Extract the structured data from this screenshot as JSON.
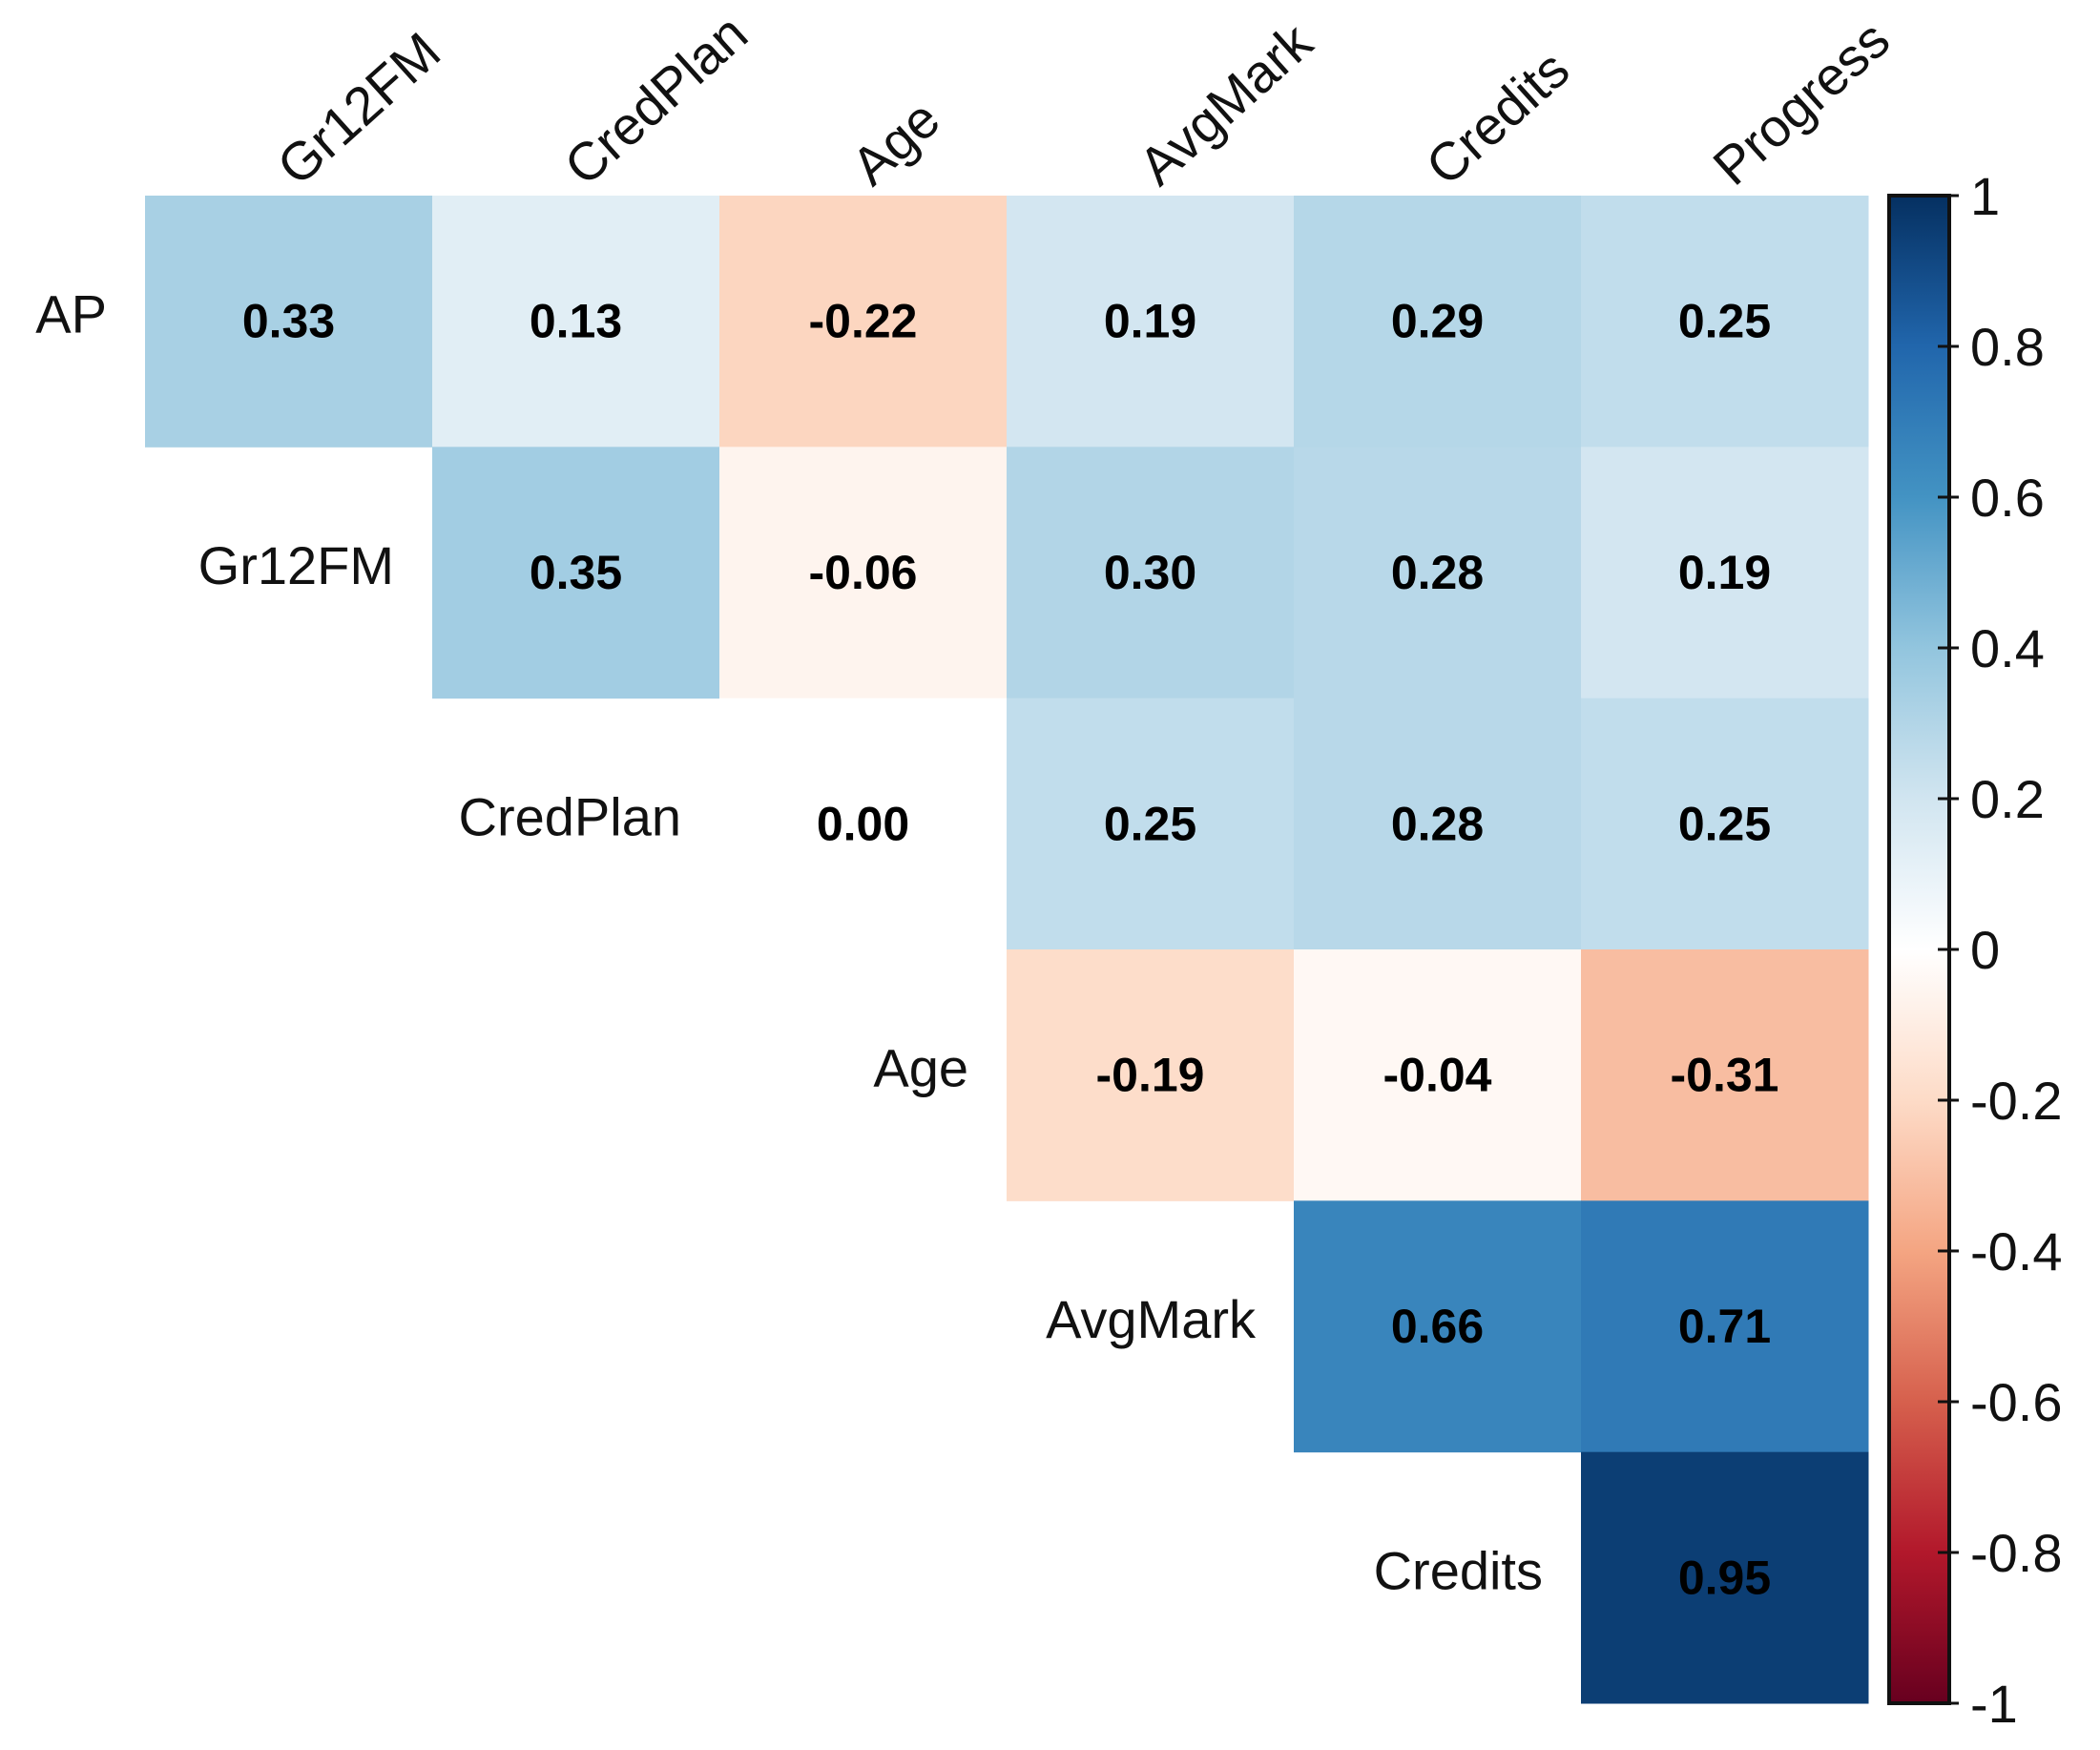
{
  "chart_data": {
    "type": "heatmap",
    "title": "",
    "row_labels": [
      "AP",
      "Gr12FM",
      "CredPlan",
      "Age",
      "AvgMark",
      "Credits"
    ],
    "col_labels": [
      "Gr12FM",
      "CredPlan",
      "Age",
      "AvgMark",
      "Credits",
      "Progress"
    ],
    "values": [
      [
        0.33,
        0.13,
        -0.22,
        0.19,
        0.29,
        0.25
      ],
      [
        null,
        0.35,
        -0.06,
        0.3,
        0.28,
        0.19
      ],
      [
        null,
        null,
        0.0,
        0.25,
        0.28,
        0.25
      ],
      [
        null,
        null,
        null,
        -0.19,
        -0.04,
        -0.31
      ],
      [
        null,
        null,
        null,
        null,
        0.66,
        0.71
      ],
      [
        null,
        null,
        null,
        null,
        null,
        0.95
      ]
    ],
    "value_labels": [
      [
        "0.33",
        "0.13",
        "-0.22",
        "0.19",
        "0.29",
        "0.25"
      ],
      [
        "",
        "0.35",
        "-0.06",
        "0.30",
        "0.28",
        "0.19"
      ],
      [
        "",
        "",
        "0.00",
        "0.25",
        "0.28",
        "0.25"
      ],
      [
        "",
        "",
        "",
        "-0.19",
        "-0.04",
        "-0.31"
      ],
      [
        "",
        "",
        "",
        "",
        "0.66",
        "0.71"
      ],
      [
        "",
        "",
        "",
        "",
        "",
        "0.95"
      ]
    ],
    "colorbar": {
      "range": [
        -1,
        1
      ],
      "ticks": [
        1,
        0.8,
        0.6,
        0.4,
        0.2,
        0,
        -0.2,
        -0.4,
        -0.6,
        -0.8,
        -1
      ],
      "tick_labels": [
        "1",
        "0.8",
        "0.6",
        "0.4",
        "0.2",
        "0",
        "-0.2",
        "-0.4",
        "-0.6",
        "-0.8",
        "-1"
      ],
      "placement": "right"
    },
    "palette": [
      "#67001F",
      "#B2182B",
      "#D6604D",
      "#F4A582",
      "#FDDBC7",
      "#FFFFFF",
      "#D1E5F0",
      "#92C5DE",
      "#4393C3",
      "#2166AC",
      "#053061"
    ]
  }
}
